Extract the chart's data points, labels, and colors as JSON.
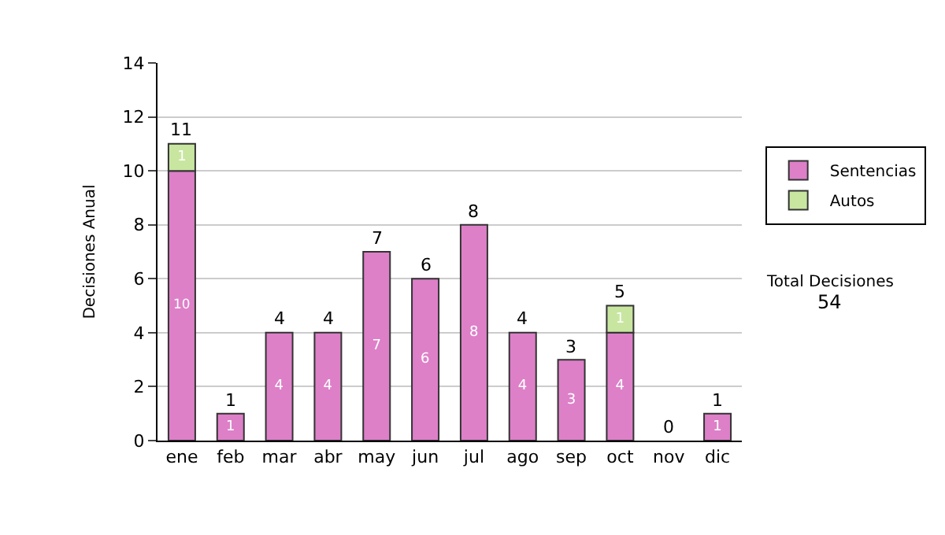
{
  "chart_data": {
    "type": "bar",
    "stacked": true,
    "ylabel": "Decisiones Anual",
    "categories": [
      "ene",
      "feb",
      "mar",
      "abr",
      "may",
      "jun",
      "jul",
      "ago",
      "sep",
      "oct",
      "nov",
      "dic"
    ],
    "series": [
      {
        "name": "Sentencias",
        "color": "#dd80c8",
        "values": [
          10,
          1,
          4,
          4,
          7,
          6,
          8,
          4,
          3,
          4,
          0,
          1
        ],
        "value_labels": [
          "10",
          "1",
          "4",
          "4",
          "7",
          "6",
          "8",
          "4",
          "3",
          "4",
          null,
          "1"
        ]
      },
      {
        "name": "Autos",
        "color": "#c8e6a0",
        "values": [
          1,
          0,
          0,
          0,
          0,
          0,
          0,
          0,
          0,
          1,
          0,
          0
        ],
        "value_labels": [
          "1",
          null,
          null,
          null,
          null,
          null,
          null,
          null,
          null,
          "1",
          null,
          null
        ]
      }
    ],
    "totals": [
      "11",
      "1",
      "4",
      "4",
      "7",
      "6",
      "8",
      "4",
      "3",
      "5",
      "0",
      "1"
    ],
    "ylim": [
      0,
      14
    ],
    "yticks": [
      0,
      2,
      4,
      6,
      8,
      10,
      12,
      14
    ],
    "grid": "y",
    "legend": "right",
    "annotations": [
      "Total Decisiones",
      "54"
    ]
  }
}
